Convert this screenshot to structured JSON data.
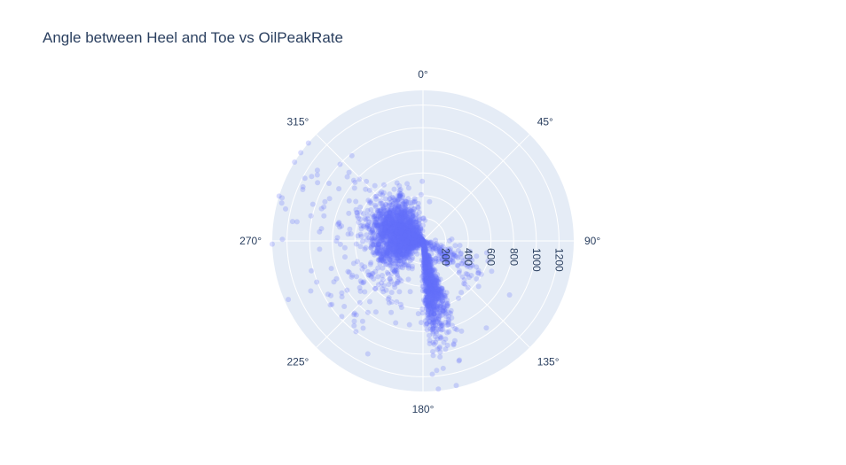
{
  "chart_data": {
    "type": "scatter",
    "subtype": "polar",
    "title": "Angle between Heel and Toe vs OilPeakRate",
    "angular_axis": {
      "direction": "clockwise",
      "rotation_zero": "top",
      "unit": "degrees",
      "tick_labels": [
        "0°",
        "45°",
        "90°",
        "135°",
        "180°",
        "225°",
        "270°",
        "315°"
      ],
      "tick_values": [
        0,
        45,
        90,
        135,
        180,
        225,
        270,
        315
      ]
    },
    "radial_axis": {
      "range": [
        0,
        1330
      ],
      "tick_values": [
        200,
        400,
        600,
        800,
        1000,
        1200
      ],
      "tick_labels": [
        "200",
        "400",
        "600",
        "800",
        "1000",
        "1200"
      ],
      "tick_angle_deg": 90
    },
    "grid": true,
    "marker_color": "#636efa",
    "marker_opacity": 0.25,
    "clusters": [
      {
        "theta_center": 300,
        "theta_spread": 22,
        "r_center": 240,
        "r_spread": 140,
        "count": 1400
      },
      {
        "theta_center": 255,
        "theta_spread": 18,
        "r_center": 210,
        "r_spread": 120,
        "count": 700
      },
      {
        "theta_center": 173,
        "theta_spread": 3,
        "r_center": 420,
        "r_spread": 250,
        "count": 500
      },
      {
        "theta_center": 165,
        "theta_spread": 4,
        "r_center": 380,
        "r_spread": 220,
        "count": 350
      },
      {
        "theta_center": 120,
        "theta_spread": 12,
        "r_center": 280,
        "r_spread": 150,
        "count": 160
      },
      {
        "theta_center": 230,
        "theta_spread": 20,
        "r_center": 520,
        "r_spread": 280,
        "count": 140
      },
      {
        "theta_center": 295,
        "theta_spread": 15,
        "r_center": 800,
        "r_spread": 300,
        "count": 70
      }
    ],
    "points": [
      {
        "theta": 287,
        "r": 1300
      },
      {
        "theta": 285,
        "r": 1290
      },
      {
        "theta": 298,
        "r": 1180
      },
      {
        "theta": 302,
        "r": 1100
      },
      {
        "theta": 176,
        "r": 1180
      },
      {
        "theta": 174,
        "r": 1150
      },
      {
        "theta": 171,
        "r": 1140
      },
      {
        "theta": 163,
        "r": 1100
      },
      {
        "theta": 206,
        "r": 1110
      },
      {
        "theta": 144,
        "r": 950
      },
      {
        "theta": 122,
        "r": 900
      },
      {
        "theta": 227,
        "r": 980
      }
    ]
  }
}
